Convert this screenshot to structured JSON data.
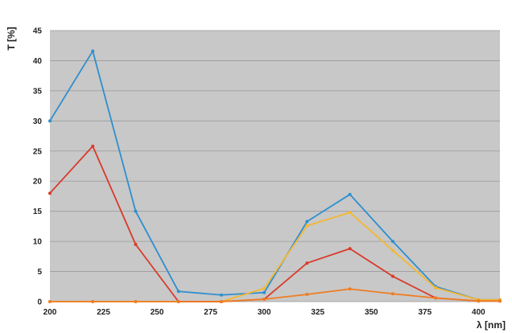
{
  "chart_data": {
    "type": "line",
    "xlabel": "λ [nm]",
    "ylabel": "T [%]",
    "xlim": [
      200,
      410
    ],
    "ylim": [
      0,
      45
    ],
    "x_ticks": [
      200,
      225,
      250,
      275,
      300,
      325,
      350,
      375,
      400
    ],
    "y_ticks": [
      0,
      5,
      10,
      15,
      20,
      25,
      30,
      35,
      40,
      45
    ],
    "grid": true,
    "legend": "none",
    "x": [
      200,
      220,
      240,
      260,
      280,
      300,
      320,
      340,
      360,
      380,
      400,
      410
    ],
    "series": [
      {
        "color": "#2f8fce",
        "values": [
          30,
          41.6,
          15,
          1.7,
          1.1,
          1.5,
          13.3,
          17.8,
          10,
          2.5,
          0.3,
          0.3
        ]
      },
      {
        "color": "#f5b731",
        "values": [
          0,
          0,
          0,
          0,
          0,
          2.2,
          12.6,
          14.8,
          8.5,
          2.3,
          0.3,
          0.3
        ]
      },
      {
        "color": "#d93a2b",
        "values": [
          18,
          25.8,
          9.5,
          0,
          0,
          0.4,
          6.4,
          8.8,
          4.2,
          0.6,
          0.1,
          0.1
        ]
      },
      {
        "color": "#ef7d22",
        "values": [
          0,
          0,
          0,
          0,
          0,
          0.4,
          1.2,
          2.1,
          1.3,
          0.6,
          0.1,
          0.1
        ]
      }
    ]
  }
}
